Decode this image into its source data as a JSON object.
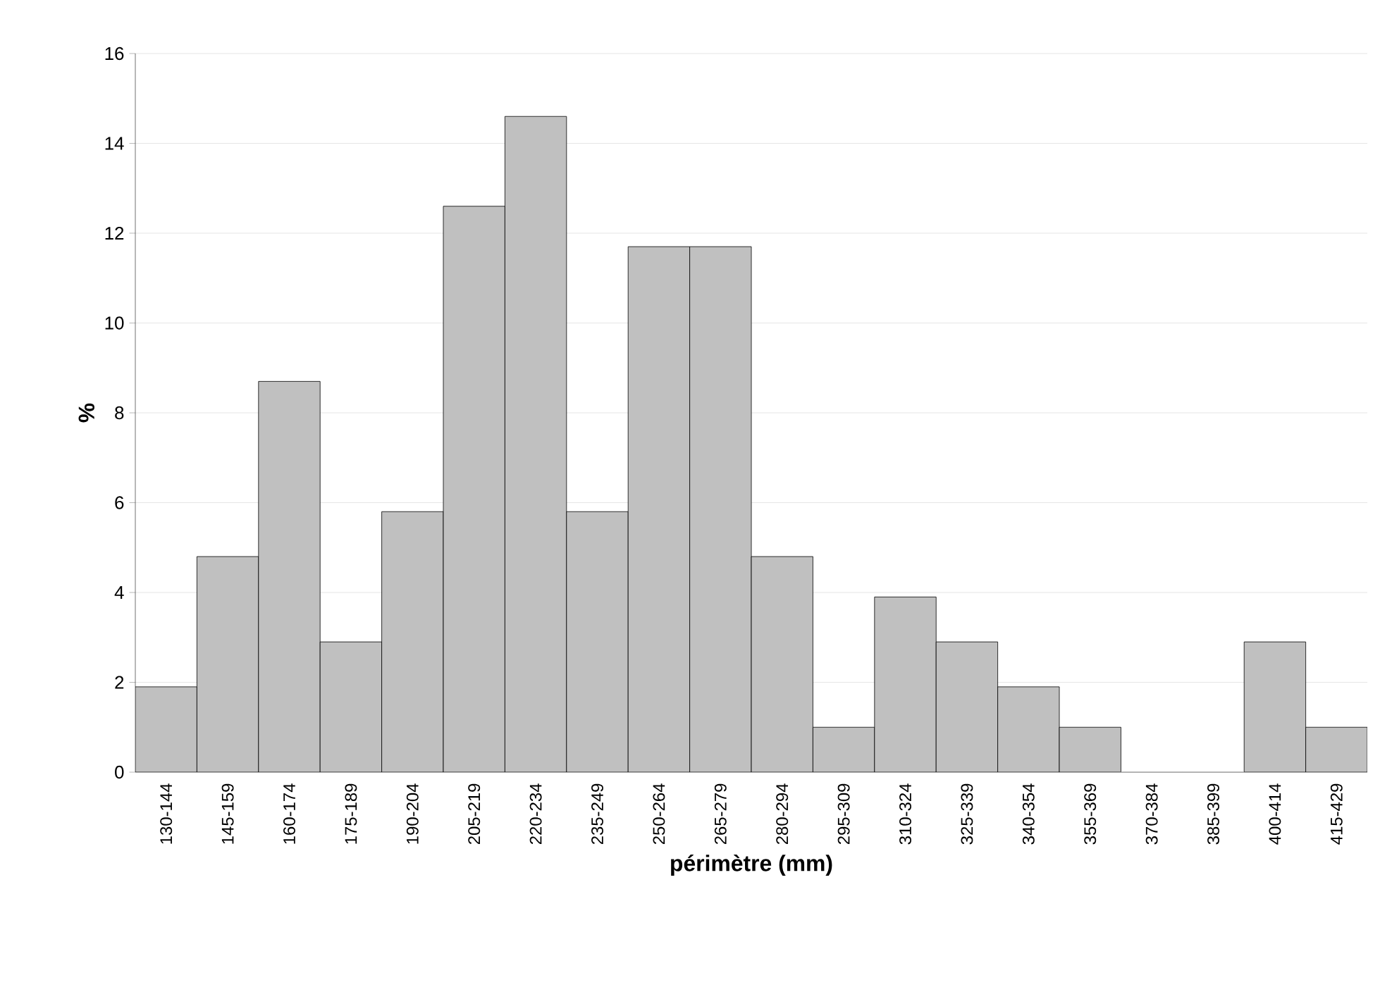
{
  "chart_data": {
    "type": "bar",
    "xlabel": "périmètre (mm)",
    "ylabel": "%",
    "categories": [
      "130-144",
      "145-159",
      "160-174",
      "175-189",
      "190-204",
      "205-219",
      "220-234",
      "235-249",
      "250-264",
      "265-279",
      "280-294",
      "295-309",
      "310-324",
      "325-339",
      "340-354",
      "355-369",
      "370-384",
      "385-399",
      "400-414",
      "415-429"
    ],
    "values": [
      1.9,
      4.8,
      8.7,
      2.9,
      5.8,
      12.6,
      14.6,
      5.8,
      11.7,
      11.7,
      4.8,
      1.0,
      3.9,
      2.9,
      1.9,
      1.0,
      0,
      0,
      2.9,
      1.0
    ],
    "color": "#c0c0c0",
    "ylim": [
      0,
      16
    ],
    "yticks": [
      0,
      2,
      4,
      6,
      8,
      10,
      12,
      14,
      16
    ],
    "grid": "y"
  }
}
